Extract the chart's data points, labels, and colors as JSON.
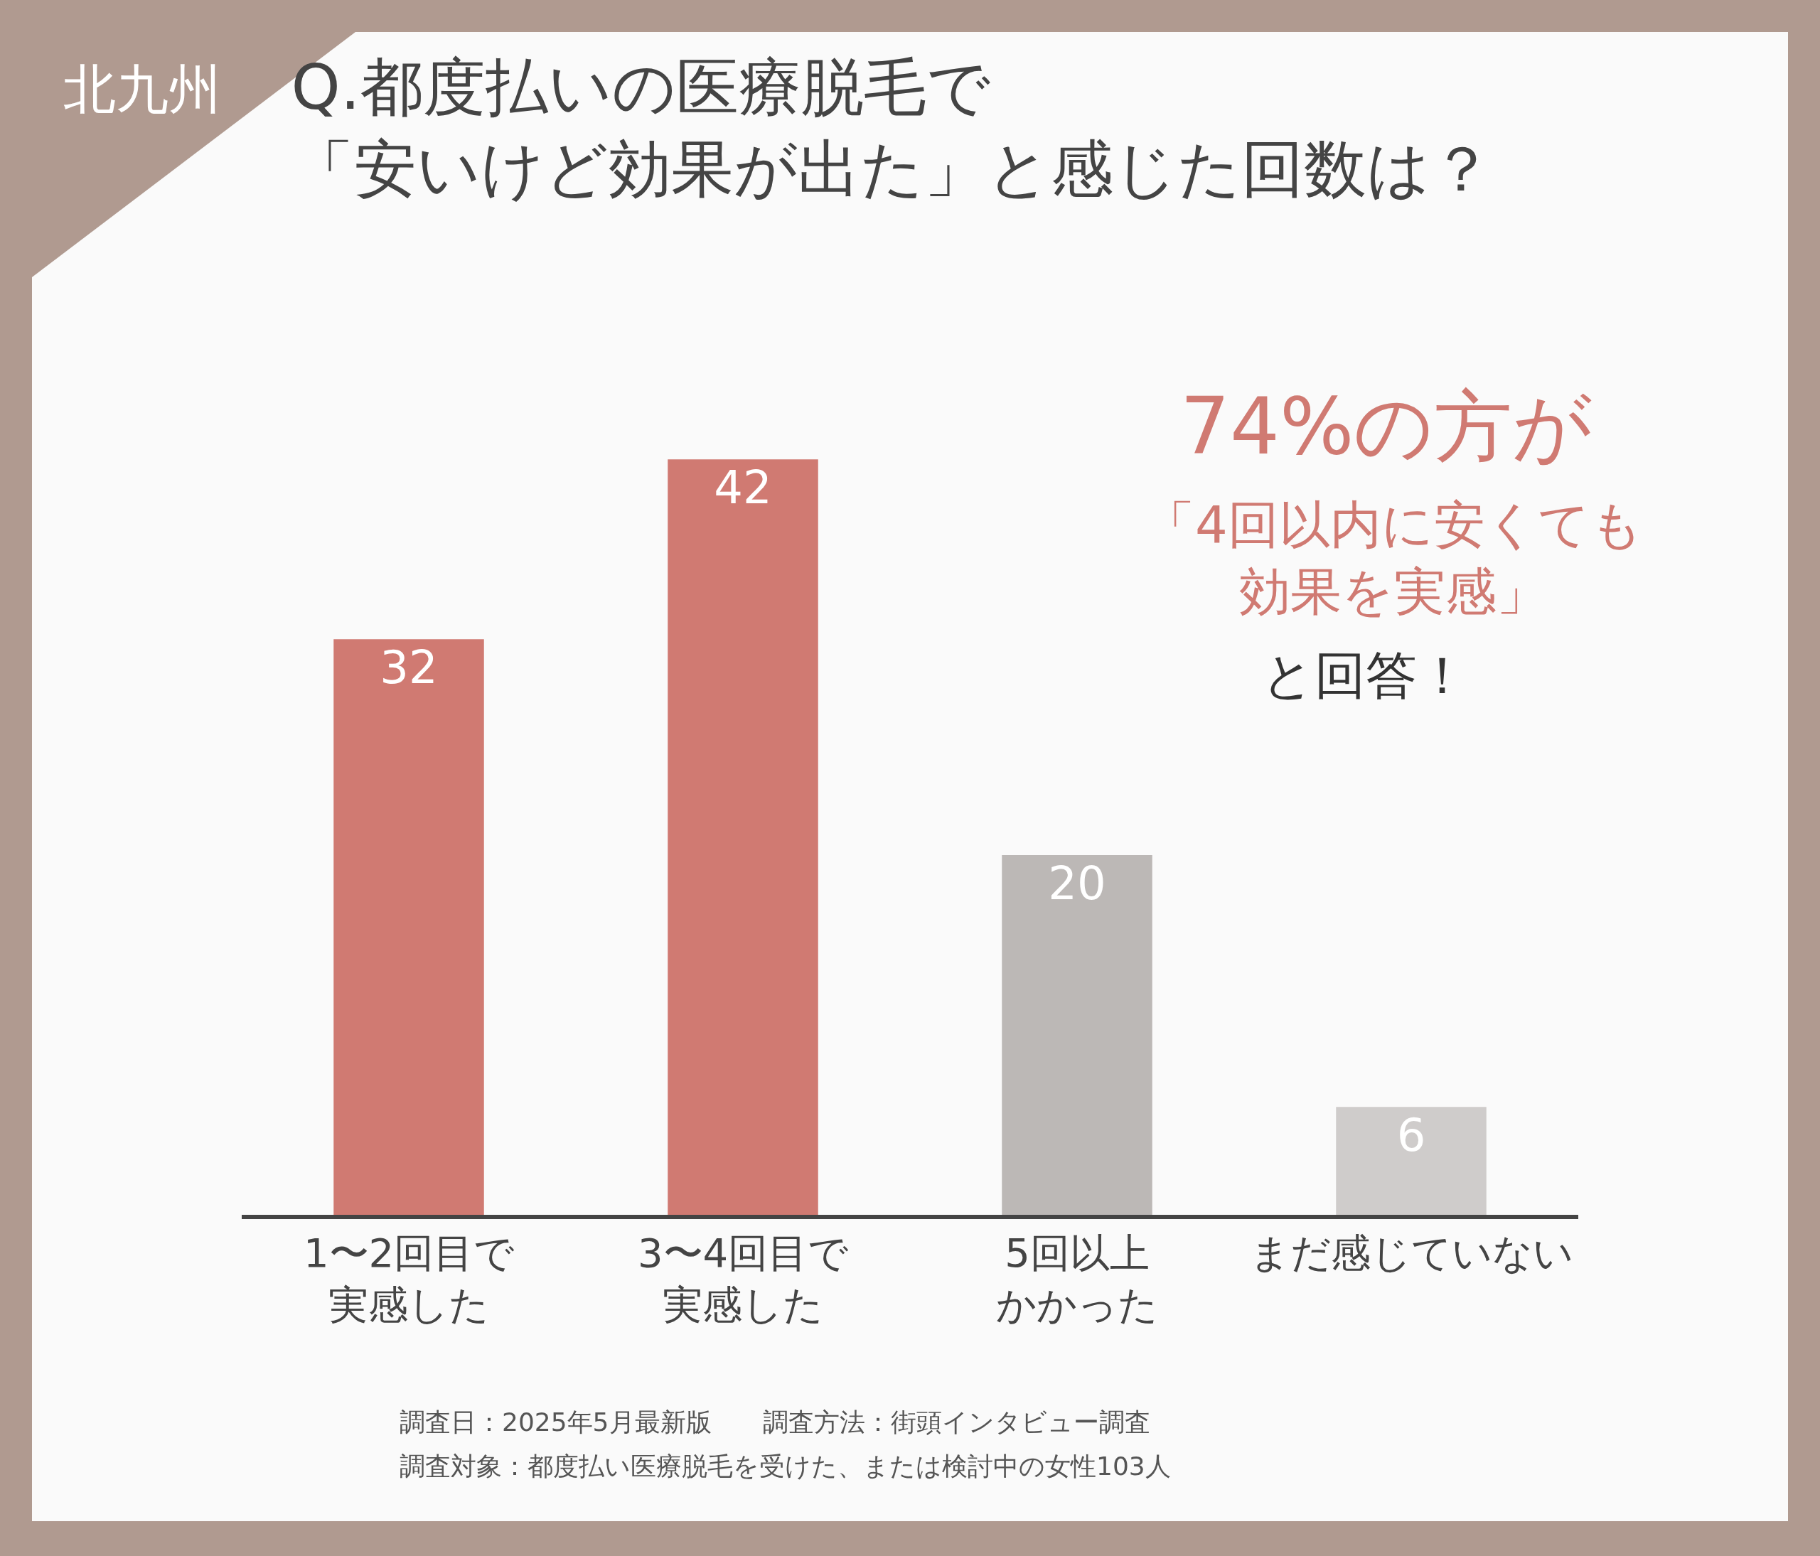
{
  "chart_data": {
    "type": "bar",
    "title": "Q.都度払いの医療脱毛で「安いけど効果が出た」と感じた回数は？",
    "categories": [
      "1〜2回目で実感した",
      "3〜4回目で実感した",
      "5回以上かかった",
      "まだ感じていない"
    ],
    "values": [
      32,
      42,
      20,
      6
    ],
    "colors": [
      "#d07a72",
      "#d07a72",
      "#bcb8b6",
      "#cfcccb"
    ],
    "data_labels": true,
    "annotations": [
      "北九州",
      "74%の方が",
      "「4回以内に安くても効果を実感」",
      "と回答！",
      "調査日：2025年5月最新版　　調査方法：街頭インタビュー調査",
      "調査対象：都度払い医療脱毛を受けた、または検討中の女性103人"
    ]
  }
}
